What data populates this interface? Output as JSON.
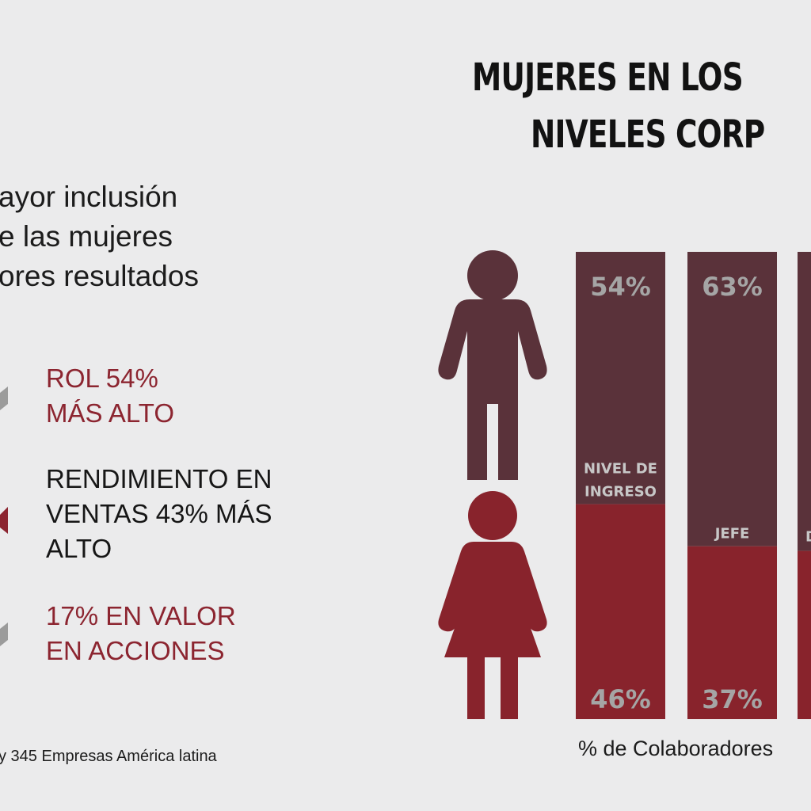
{
  "title_lines": [
    "MUJERES EN LOS",
    "NIVELES CORP"
  ],
  "intro_lines": [
    "ayor inclusión",
    "e las mujeres",
    "ores resultados"
  ],
  "stats": [
    {
      "lines": [
        "ROL 54%",
        "MÁS ALTO"
      ],
      "color": "#8c2530"
    },
    {
      "lines": [
        "RENDIMIENTO EN",
        "VENTAS 43% MÁS",
        "ALTO"
      ],
      "color": "#161616"
    },
    {
      "lines": [
        "17% EN VALOR",
        "EN ACCIONES"
      ],
      "color": "#8c2530"
    }
  ],
  "source": "y 345 Empresas América latina",
  "icons": {
    "men": "man-icon",
    "women": "woman-icon"
  },
  "colors": {
    "men": "#5a323a",
    "women": "#88232c",
    "background": "#ebebec"
  },
  "chart_data": {
    "type": "bar",
    "stacked": true,
    "percent": true,
    "categories": [
      [
        "NIVEL DE",
        "INGRESO"
      ],
      [
        "JEFE"
      ],
      [
        "D"
      ]
    ],
    "series": [
      {
        "values": [
          54,
          63,
          null
        ],
        "labels": [
          "54%",
          "63%",
          ""
        ]
      },
      {
        "values": [
          46,
          37,
          null
        ],
        "labels": [
          "46%",
          "37%",
          ""
        ]
      }
    ],
    "ylim": [
      0,
      100
    ],
    "xlabel": "% de Colaboradores"
  }
}
